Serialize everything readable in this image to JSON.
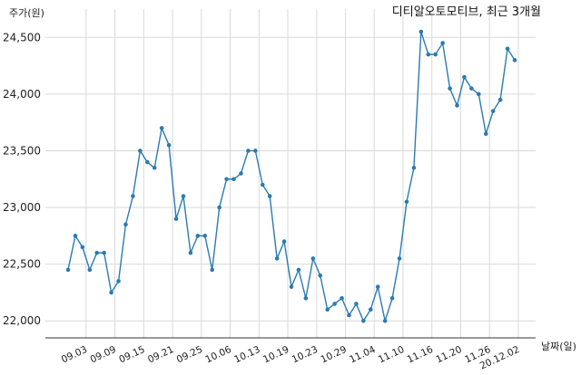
{
  "chart_data": {
    "type": "line",
    "title": "디티알오토모티브, 최근 3개월",
    "xlabel": "날짜(일)",
    "ylabel": "주가(원)",
    "ylim": [
      21850,
      24750
    ],
    "yticks": [
      22000,
      22500,
      23000,
      23500,
      24000,
      24500
    ],
    "ytick_labels": [
      "22,000",
      "22,500",
      "23,000",
      "23,500",
      "24,000",
      "24,500"
    ],
    "xtick_labels": [
      "09.03",
      "09.09",
      "09.15",
      "09.21",
      "09.25",
      "10.06",
      "10.13",
      "10.19",
      "10.23",
      "10.29",
      "11.04",
      "11.10",
      "11.16",
      "11.20",
      "11.26",
      "20.12.02"
    ],
    "xtick_positions": [
      2.5,
      6.5,
      10.5,
      14.5,
      18.5,
      22.5,
      26.5,
      30.5,
      34.5,
      38.5,
      42.5,
      46.5,
      50.5,
      54.5,
      58.5,
      62.5
    ],
    "grid": true,
    "colors": {
      "line": "#2b7bb0",
      "grid": "#d9d9d9"
    },
    "series": [
      {
        "values": [
          22450,
          22750,
          22650,
          22450,
          22600,
          22600,
          22250,
          22350,
          22850,
          23100,
          23500,
          23400,
          23350,
          23700,
          23550,
          22900,
          23100,
          22600,
          22750,
          22750,
          22450,
          23000,
          23250,
          23250,
          23300,
          23500,
          23500,
          23200,
          23100,
          22550,
          22700,
          22300,
          22450,
          22200,
          22550,
          22400,
          22100,
          22150,
          22200,
          22050,
          22150,
          22000,
          22100,
          22300,
          22000,
          22200,
          22550,
          23050,
          23350,
          24550,
          24350,
          24350,
          24450,
          24050,
          23900,
          24150,
          24050,
          24000,
          23650,
          23850,
          23950,
          24400,
          24300
        ]
      }
    ]
  }
}
